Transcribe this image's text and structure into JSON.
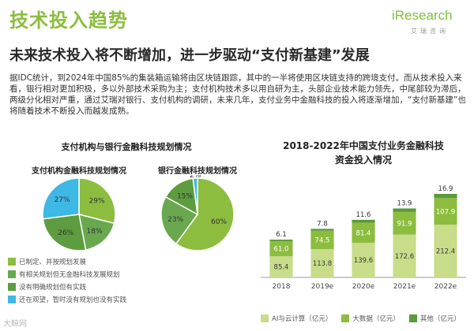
{
  "header": {
    "title": "技术投入趋势",
    "brand_name": "iResearch",
    "brand_sub": "艾瑞咨询",
    "subtitle": "未来技术投入将不断增加，进一步驱动“支付新基建”发展"
  },
  "body_text": "据IDC统计，到2024年中国85%的集装箱运输将由区块链跟踪，其中的一半将使用区块链支持的跨境支付。而从技术投入来看，银行相对更加积极，多以外部技术采购为主；支付机构技术多以用自研为主，头部企业技术能力领先，中尾部较为滞后，两级分化相对严重，通过艾瑞对银行、支付机构的调研，未来几年，支付业务中金融科技的投入将逐渐增加，“支付新基建”也将随着技术不断投入而越发成熟。",
  "left_panel": {
    "title": "支付机构与银行金融科技规划情况"
  },
  "watermark": "大鲸网",
  "colors": {
    "title_green": "#8cbd3f",
    "pie_1": "#8cbd3f",
    "pie_2": "#6aa84f",
    "pie_3": "#5d9c3f",
    "pie_4": "#3eb8e4",
    "bar_ai": "#c8dc8a",
    "bar_data": "#8cbd3f",
    "bar_other": "#5a9a3a"
  },
  "chart_data": [
    {
      "type": "pie",
      "title": "支付机构金融科技规划情况",
      "categories": [
        "已制定、并按规划发展",
        "有相关规划但无金融科技发展规划",
        "没有明确规划但有实践",
        "还在观望，暂时没有规划也没有实践"
      ],
      "values": [
        29,
        18,
        26,
        27
      ],
      "labels": [
        "29%",
        "18%",
        "26%",
        "27%"
      ]
    },
    {
      "type": "pie",
      "title": "银行金融科技规划情况",
      "categories": [
        "已制定、并按规划发展",
        "有相关规划但无金融科技发展规划",
        "没有明确规划但有实践",
        "还在观望，暂时没有规划也没有实践"
      ],
      "values": [
        60,
        23,
        15,
        2
      ],
      "labels": [
        "60%",
        "23%",
        "15%",
        "2%"
      ]
    },
    {
      "type": "bar",
      "stacked": true,
      "title": "2018-2022年中国支付业务金融科技资金投入情况",
      "categories": [
        "2018",
        "2019e",
        "2020e",
        "2021e",
        "2022e"
      ],
      "series": [
        {
          "name": "AI与云计算（亿元）",
          "values": [
            85.4,
            113.8,
            139.6,
            172.6,
            212.4
          ]
        },
        {
          "name": "大数据（亿元）",
          "values": [
            61.0,
            74.5,
            81.4,
            91.9,
            107.9
          ]
        },
        {
          "name": "其他（亿元）",
          "values": [
            6.1,
            7.8,
            11.6,
            13.9,
            16.9
          ]
        }
      ]
    }
  ]
}
